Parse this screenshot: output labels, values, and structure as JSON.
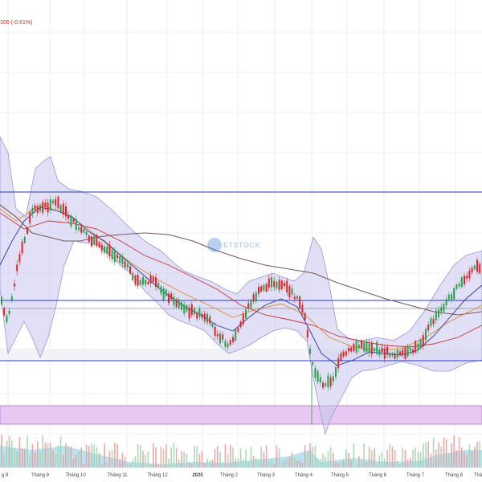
{
  "header": {
    "price_change": "100 (-0.61%)"
  },
  "watermark": {
    "text": "ETSTOCK",
    "logo": "circle-logo-icon"
  },
  "colors": {
    "up": "#2e9e4a",
    "down": "#d8262b",
    "band_fill": "#c9c6ee",
    "band_line": "#9a97d6",
    "level_line": "#2a3fbf",
    "zone_fill": "#e6c8f0",
    "volume": "#8fd0e6"
  },
  "chart_data": {
    "type": "candlestick",
    "x_tick_labels": [
      "g 8",
      "Tháng 9",
      "Tháng 10",
      "Tháng 11",
      "Tháng 12",
      "2025",
      "Tháng 2",
      "Tháng 3",
      "Tháng 4",
      "Tháng 5",
      "Tháng 6",
      "Tháng 7",
      "Tháng 8",
      "Thá"
    ],
    "overlays": [
      "bollinger-bands",
      "moving-averages",
      "horizontal-levels",
      "volume"
    ],
    "grid": true
  }
}
